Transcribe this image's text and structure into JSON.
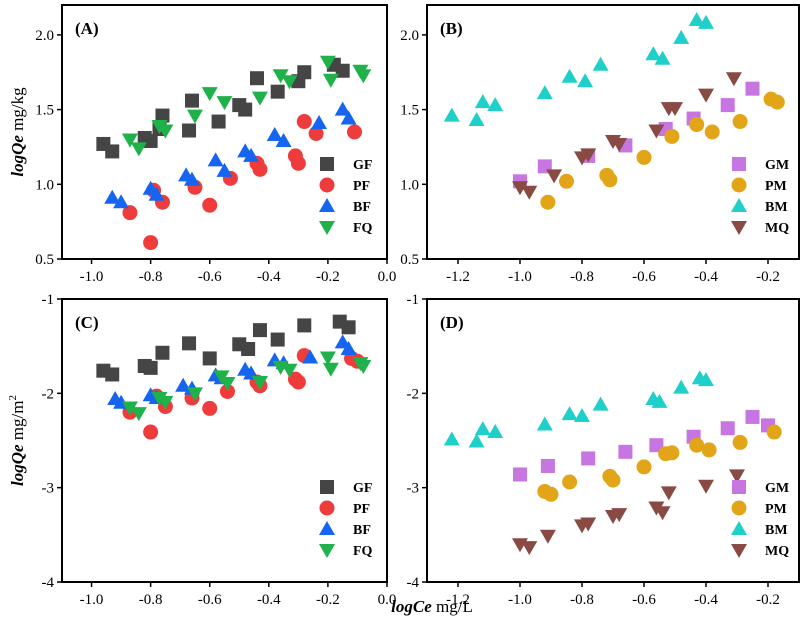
{
  "figure_xlabel": {
    "var": "logCe",
    "unit": " mg/L"
  },
  "chart_data": [
    {
      "panel": "(A)",
      "type": "scatter",
      "xlim": [
        -1.1,
        0.0
      ],
      "ylim": [
        0.5,
        2.2
      ],
      "xticks": [
        -1.0,
        -0.8,
        -0.6,
        -0.4,
        -0.2,
        0.0
      ],
      "xtick_labels": [
        "-1.0",
        "-0.8",
        "-0.6",
        "-0.4",
        "-0.2",
        "0.0"
      ],
      "yticks": [
        0.5,
        1.0,
        1.5,
        2.0
      ],
      "ytick_labels": [
        "0.5",
        "1.0",
        "1.5",
        "2.0"
      ],
      "ylabel": {
        "var": "logQe",
        "unit": " mg/kg",
        "sup": ""
      },
      "legend": "bottom-right",
      "series": [
        {
          "name": "GF",
          "marker": "square",
          "color": "#454545",
          "x": [
            -0.96,
            -0.93,
            -0.82,
            -0.8,
            -0.77,
            -0.76,
            -0.67,
            -0.66,
            -0.57,
            -0.5,
            -0.48,
            -0.44,
            -0.37,
            -0.3,
            -0.28,
            -0.18,
            -0.15
          ],
          "y": [
            1.27,
            1.22,
            1.31,
            1.29,
            1.37,
            1.46,
            1.36,
            1.56,
            1.42,
            1.53,
            1.5,
            1.71,
            1.62,
            1.69,
            1.75,
            1.8,
            1.76
          ]
        },
        {
          "name": "PF",
          "marker": "circle",
          "color": "#ee3b3b",
          "x": [
            -0.87,
            -0.8,
            -0.79,
            -0.76,
            -0.65,
            -0.6,
            -0.53,
            -0.44,
            -0.43,
            -0.31,
            -0.3,
            -0.28,
            -0.24,
            -0.11
          ],
          "y": [
            0.81,
            0.61,
            0.96,
            0.88,
            0.98,
            0.86,
            1.04,
            1.14,
            1.1,
            1.19,
            1.14,
            1.42,
            1.34,
            1.35
          ]
        },
        {
          "name": "BF",
          "marker": "triangle-up",
          "color": "#1565f0",
          "x": [
            -0.93,
            -0.9,
            -0.8,
            -0.78,
            -0.68,
            -0.66,
            -0.58,
            -0.55,
            -0.48,
            -0.46,
            -0.38,
            -0.35,
            -0.23,
            -0.15,
            -0.13
          ],
          "y": [
            0.91,
            0.88,
            0.97,
            0.93,
            1.06,
            1.03,
            1.16,
            1.09,
            1.22,
            1.19,
            1.33,
            1.29,
            1.41,
            1.5,
            1.44
          ]
        },
        {
          "name": "FQ",
          "marker": "triangle-down",
          "color": "#1fb24a",
          "x": [
            -0.87,
            -0.84,
            -0.77,
            -0.75,
            -0.65,
            -0.6,
            -0.55,
            -0.43,
            -0.36,
            -0.33,
            -0.2,
            -0.19,
            -0.09,
            -0.08
          ],
          "y": [
            1.3,
            1.24,
            1.39,
            1.36,
            1.46,
            1.61,
            1.55,
            1.58,
            1.73,
            1.69,
            1.82,
            1.7,
            1.76,
            1.73
          ]
        }
      ]
    },
    {
      "panel": "(B)",
      "type": "scatter",
      "xlim": [
        -1.3,
        -0.1
      ],
      "ylim": [
        0.5,
        2.2
      ],
      "xticks": [
        -1.2,
        -1.0,
        -0.8,
        -0.6,
        -0.4,
        -0.2
      ],
      "xtick_labels": [
        "-1.2",
        "-1.0",
        "-0.8",
        "-0.6",
        "-0.4",
        "-0.2"
      ],
      "yticks": [
        0.5,
        1.0,
        1.5,
        2.0
      ],
      "ytick_labels": [
        "0.5",
        "1.0",
        "1.5",
        "2.0"
      ],
      "ylabel": null,
      "legend": "bottom-right",
      "series": [
        {
          "name": "GM",
          "marker": "square",
          "color": "#c775e0",
          "x": [
            -1.0,
            -0.92,
            -0.78,
            -0.66,
            -0.53,
            -0.44,
            -0.33,
            -0.25
          ],
          "y": [
            1.02,
            1.12,
            1.19,
            1.26,
            1.37,
            1.44,
            1.53,
            1.64
          ]
        },
        {
          "name": "PM",
          "marker": "circle",
          "color": "#e2a517",
          "x": [
            -0.91,
            -0.85,
            -0.72,
            -0.71,
            -0.6,
            -0.51,
            -0.43,
            -0.38,
            -0.29,
            -0.19,
            -0.17
          ],
          "y": [
            0.88,
            1.02,
            1.06,
            1.03,
            1.18,
            1.32,
            1.4,
            1.35,
            1.42,
            1.57,
            1.55
          ]
        },
        {
          "name": "BM",
          "marker": "triangle-up",
          "color": "#1fcfc9",
          "x": [
            -1.22,
            -1.14,
            -1.12,
            -1.08,
            -0.92,
            -0.84,
            -0.79,
            -0.74,
            -0.57,
            -0.54,
            -0.48,
            -0.43,
            -0.4
          ],
          "y": [
            1.46,
            1.43,
            1.55,
            1.53,
            1.61,
            1.72,
            1.69,
            1.8,
            1.87,
            1.84,
            1.98,
            2.1,
            2.08
          ]
        },
        {
          "name": "MQ",
          "marker": "triangle-down",
          "color": "#8a4a44",
          "x": [
            -1.0,
            -0.97,
            -0.89,
            -0.8,
            -0.78,
            -0.7,
            -0.68,
            -0.56,
            -0.52,
            -0.5,
            -0.4,
            -0.31
          ],
          "y": [
            0.98,
            0.95,
            1.06,
            1.18,
            1.2,
            1.29,
            1.27,
            1.36,
            1.51,
            1.51,
            1.6,
            1.71
          ]
        }
      ]
    },
    {
      "panel": "(C)",
      "type": "scatter",
      "xlim": [
        -1.1,
        0.0
      ],
      "ylim": [
        -4.0,
        -1.0
      ],
      "xticks": [
        -1.0,
        -0.8,
        -0.6,
        -0.4,
        -0.2,
        0.0
      ],
      "xtick_labels": [
        "-1.0",
        "-0.8",
        "-0.6",
        "-0.4",
        "-0.2",
        "0.0"
      ],
      "yticks": [
        -4,
        -3,
        -2,
        -1
      ],
      "ytick_labels": [
        "-4",
        "-3",
        "-2",
        "-1"
      ],
      "ylabel": {
        "var": "logQe",
        "unit": " mg/m",
        "sup": "2"
      },
      "legend": "bottom-right",
      "series": [
        {
          "name": "GF",
          "marker": "square",
          "color": "#454545",
          "x": [
            -0.96,
            -0.93,
            -0.82,
            -0.8,
            -0.76,
            -0.67,
            -0.6,
            -0.5,
            -0.47,
            -0.43,
            -0.37,
            -0.28,
            -0.16,
            -0.13
          ],
          "y": [
            -1.76,
            -1.8,
            -1.71,
            -1.73,
            -1.57,
            -1.47,
            -1.63,
            -1.48,
            -1.53,
            -1.33,
            -1.43,
            -1.28,
            -1.24,
            -1.3
          ]
        },
        {
          "name": "PF",
          "marker": "circle",
          "color": "#ee3b3b",
          "x": [
            -0.87,
            -0.8,
            -0.78,
            -0.75,
            -0.66,
            -0.6,
            -0.54,
            -0.44,
            -0.43,
            -0.31,
            -0.3,
            -0.28,
            -0.12,
            -0.1
          ],
          "y": [
            -2.2,
            -2.41,
            -2.03,
            -2.14,
            -2.05,
            -2.16,
            -1.98,
            -1.88,
            -1.92,
            -1.85,
            -1.88,
            -1.6,
            -1.63,
            -1.66
          ]
        },
        {
          "name": "BF",
          "marker": "triangle-up",
          "color": "#1565f0",
          "x": [
            -0.92,
            -0.9,
            -0.8,
            -0.78,
            -0.69,
            -0.66,
            -0.58,
            -0.56,
            -0.48,
            -0.46,
            -0.38,
            -0.35,
            -0.26,
            -0.15,
            -0.13
          ],
          "y": [
            -2.06,
            -2.1,
            -2.02,
            -2.05,
            -1.92,
            -1.95,
            -1.81,
            -1.84,
            -1.75,
            -1.79,
            -1.65,
            -1.68,
            -1.62,
            -1.46,
            -1.53
          ]
        },
        {
          "name": "FQ",
          "marker": "triangle-down",
          "color": "#1fb24a",
          "x": [
            -0.87,
            -0.84,
            -0.77,
            -0.75,
            -0.65,
            -0.56,
            -0.54,
            -0.43,
            -0.36,
            -0.33,
            -0.2,
            -0.19,
            -0.09,
            -0.08
          ],
          "y": [
            -2.15,
            -2.21,
            -2.05,
            -2.09,
            -2.0,
            -1.82,
            -1.89,
            -1.88,
            -1.72,
            -1.75,
            -1.62,
            -1.74,
            -1.68,
            -1.71
          ]
        }
      ]
    },
    {
      "panel": "(D)",
      "type": "scatter",
      "xlim": [
        -1.3,
        -0.1
      ],
      "ylim": [
        -4.0,
        -1.0
      ],
      "xticks": [
        -1.2,
        -1.0,
        -0.8,
        -0.6,
        -0.4,
        -0.2
      ],
      "xtick_labels": [
        "-1.2",
        "-1.0",
        "-0.8",
        "-0.6",
        "-0.4",
        "-0.2"
      ],
      "yticks": [
        -4,
        -3,
        -2,
        -1
      ],
      "ytick_labels": [
        "-4",
        "-3",
        "-2",
        "-1"
      ],
      "ylabel": null,
      "legend": "bottom-right",
      "series": [
        {
          "name": "GM",
          "marker": "square",
          "color": "#c775e0",
          "x": [
            -1.0,
            -0.91,
            -0.78,
            -0.66,
            -0.56,
            -0.44,
            -0.33,
            -0.25,
            -0.2
          ],
          "y": [
            -2.86,
            -2.77,
            -2.69,
            -2.62,
            -2.55,
            -2.46,
            -2.37,
            -2.25,
            -2.34
          ]
        },
        {
          "name": "PM",
          "marker": "circle",
          "color": "#e2a517",
          "x": [
            -0.92,
            -0.9,
            -0.84,
            -0.71,
            -0.7,
            -0.6,
            -0.53,
            -0.51,
            -0.43,
            -0.39,
            -0.29,
            -0.18
          ],
          "y": [
            -3.04,
            -3.07,
            -2.94,
            -2.88,
            -2.92,
            -2.78,
            -2.64,
            -2.63,
            -2.55,
            -2.6,
            -2.52,
            -2.41
          ]
        },
        {
          "name": "BM",
          "marker": "triangle-up",
          "color": "#1fcfc9",
          "x": [
            -1.22,
            -1.14,
            -1.12,
            -1.08,
            -0.92,
            -0.84,
            -0.8,
            -0.74,
            -0.57,
            -0.55,
            -0.48,
            -0.42,
            -0.4
          ],
          "y": [
            -2.49,
            -2.51,
            -2.38,
            -2.41,
            -2.33,
            -2.22,
            -2.24,
            -2.12,
            -2.06,
            -2.09,
            -1.94,
            -1.84,
            -1.86
          ]
        },
        {
          "name": "MQ",
          "marker": "triangle-down",
          "color": "#8a4a44",
          "x": [
            -1.0,
            -0.97,
            -0.91,
            -0.8,
            -0.78,
            -0.7,
            -0.68,
            -0.56,
            -0.54,
            -0.52,
            -0.4,
            -0.3
          ],
          "y": [
            -3.6,
            -3.63,
            -3.51,
            -3.4,
            -3.38,
            -3.3,
            -3.28,
            -3.21,
            -3.26,
            -3.05,
            -2.98,
            -2.87
          ]
        }
      ]
    }
  ]
}
